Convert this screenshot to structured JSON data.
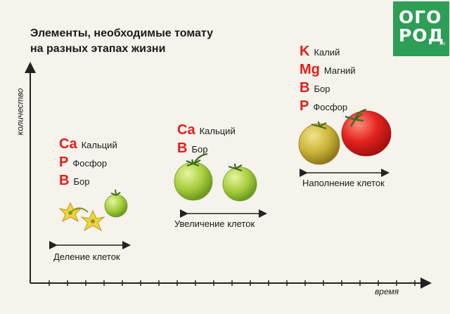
{
  "title": {
    "line1": "Элементы, необходимые томату",
    "line2": "на разных этапах жизни"
  },
  "logo": {
    "line1": "ОГО",
    "line2": "РОД",
    "suffix": ".ru"
  },
  "axes": {
    "y_label": "количество",
    "x_label": "время"
  },
  "stages": [
    {
      "label": "Деление клеток",
      "nutrients": [
        {
          "symbol": "Ca",
          "name": "Кальций"
        },
        {
          "symbol": "P",
          "name": "Фосфор"
        },
        {
          "symbol": "B",
          "name": "Бор"
        }
      ]
    },
    {
      "label": "Увеличение клеток",
      "nutrients": [
        {
          "symbol": "Ca",
          "name": "Кальций"
        },
        {
          "symbol": "B",
          "name": "Бор"
        }
      ]
    },
    {
      "label": "Наполнение клеток",
      "nutrients": [
        {
          "symbol": "K",
          "name": "Калий"
        },
        {
          "symbol": "Mg",
          "name": "Магний"
        },
        {
          "symbol": "B",
          "name": "Бор"
        },
        {
          "symbol": "P",
          "name": "Фосфор"
        }
      ]
    }
  ],
  "colors": {
    "element_symbol": "#e31d1a",
    "brand": "#2e9e57",
    "background": "#f5f3ec"
  }
}
